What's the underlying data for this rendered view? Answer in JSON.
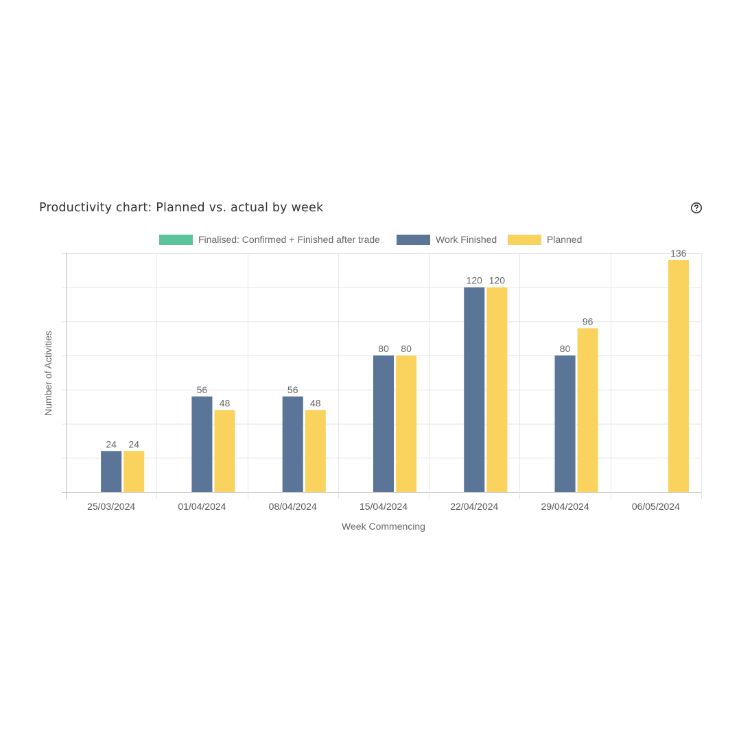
{
  "card": {
    "title": "Productivity chart: Planned vs. actual by week",
    "help_icon": "question-circle-icon"
  },
  "chart_data": {
    "type": "bar",
    "title": "",
    "xlabel": "Week Commencing",
    "ylabel": "Number of Activities",
    "categories": [
      "25/03/2024",
      "01/04/2024",
      "08/04/2024",
      "15/04/2024",
      "22/04/2024",
      "29/04/2024",
      "06/05/2024"
    ],
    "series": [
      {
        "name": "Finalised: Confirmed + Finished after trade",
        "color": "#5bc49a",
        "values": [
          null,
          null,
          null,
          null,
          null,
          null,
          null
        ]
      },
      {
        "name": "Work Finished",
        "color": "#5a7598",
        "values": [
          24,
          56,
          56,
          80,
          120,
          80,
          null
        ]
      },
      {
        "name": "Planned",
        "color": "#fad25e",
        "values": [
          24,
          48,
          48,
          80,
          120,
          96,
          136
        ]
      }
    ],
    "ylim": [
      0,
      140
    ],
    "grid": true,
    "legend_position": "top-center"
  }
}
